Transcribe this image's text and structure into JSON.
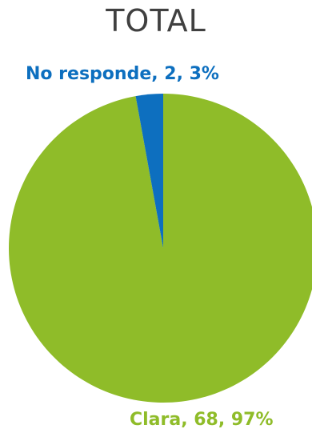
{
  "chart_data": {
    "type": "pie",
    "title": "TOTAL",
    "slices": [
      {
        "name": "Clara",
        "value": 68,
        "percent": "97%",
        "label": "Clara, 68, 97%",
        "color": "#8fbc29"
      },
      {
        "name": "No responde",
        "value": 2,
        "percent": "3%",
        "label": "No responde, 2, 3%",
        "color": "#0d6fbf"
      }
    ]
  }
}
